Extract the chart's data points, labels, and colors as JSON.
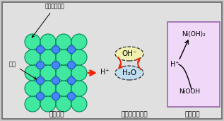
{
  "bg_color": "#c8c8c8",
  "inner_bg": "#e0e0e0",
  "large_circle_color": "#40e8a0",
  "large_circle_edge": "#008858",
  "small_circle_color": "#4488ff",
  "small_circle_edge": "#2244bb",
  "arrow_color": "#ee2200",
  "positive_box_color": "#f0d8f8",
  "positive_box_edge": "#9966aa",
  "label_bottom_left": "負電極側",
  "label_bottom_mid": "アルカリ電解液",
  "label_bottom_right": "正電極側",
  "label_top": "水素吸蔵合金",
  "label_left": "水素",
  "label_hplus_mid": "H⁺",
  "label_ohminus": "OH⁻",
  "label_h2o": "H₂O",
  "label_nioh2": "Ni(OH)₂",
  "label_niooh": "NiOOH",
  "label_hplus_right": "H⁺",
  "oh_ellipse_color": "#f0f0b0",
  "h2o_ellipse_color": "#c0ddf0"
}
